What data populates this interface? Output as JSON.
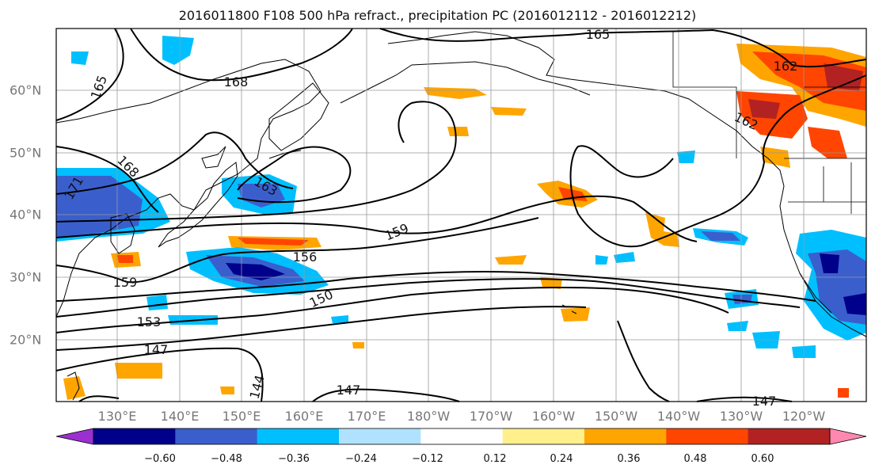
{
  "title": "2016011800 F108 500 hPa refract., precipitation PC (2016012112 - 2016012212)",
  "lon_labels": [
    "130°E",
    "140°E",
    "150°E",
    "160°E",
    "170°E",
    "180°W",
    "170°W",
    "160°W",
    "150°W",
    "140°W",
    "130°W",
    "120°W"
  ],
  "lat_labels": [
    "60°N",
    "50°N",
    "40°N",
    "30°N",
    "20°N"
  ],
  "contour_labels": [
    "165",
    "168",
    "165",
    "168",
    "171",
    "163",
    "162",
    "162",
    "159",
    "156",
    "159",
    "150",
    "153",
    "147",
    "144",
    "147",
    "147"
  ],
  "colorbar": {
    "tick_labels": [
      "−0.60",
      "−0.48",
      "−0.36",
      "−0.24",
      "−0.12",
      "0.12",
      "0.24",
      "0.36",
      "0.48",
      "0.60"
    ],
    "colors": [
      "#9b30d0",
      "#00008b",
      "#3a5fcd",
      "#00bfff",
      "#b0e2ff",
      "#ffffff",
      "#fff08c",
      "#ffa500",
      "#ff4500",
      "#b22222",
      "#ff88b0"
    ]
  }
}
